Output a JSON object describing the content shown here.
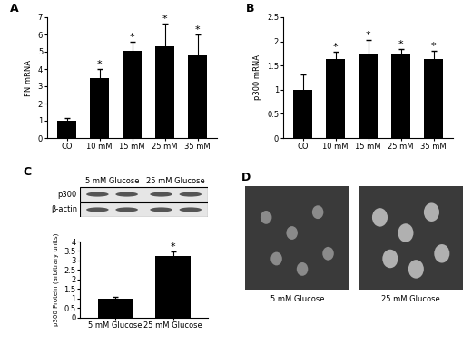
{
  "chart_data": [
    {
      "type": "bar",
      "title": "A",
      "y_label": "FN mRNA",
      "categories": [
        "CO",
        "10 mM",
        "15 mM",
        "25 mM",
        "35 mM"
      ],
      "values": [
        1.0,
        3.5,
        5.05,
        5.3,
        4.8
      ],
      "errors": [
        0.15,
        0.5,
        0.55,
        1.35,
        1.2
      ],
      "annotations": [
        null,
        "*",
        "*",
        "*",
        "*"
      ],
      "color": "#000000",
      "ylim": [
        0,
        7
      ],
      "yticks": [
        0,
        1,
        2,
        3,
        4,
        5,
        6,
        7
      ]
    },
    {
      "type": "bar",
      "title": "B",
      "y_label": "p300 mRNA",
      "categories": [
        "CO",
        "10 mM",
        "15 mM",
        "25 mM",
        "35 mM"
      ],
      "values": [
        1.0,
        1.63,
        1.75,
        1.73,
        1.63
      ],
      "errors": [
        0.32,
        0.15,
        0.28,
        0.12,
        0.18
      ],
      "annotations": [
        null,
        "*",
        "*",
        "*",
        "*"
      ],
      "color": "#000000",
      "ylim": [
        0,
        2.5
      ],
      "yticks": [
        0,
        0.5,
        1,
        1.5,
        2,
        2.5
      ]
    },
    {
      "type": "blot",
      "title": "C",
      "columns": [
        "5 mM Glucose",
        "25 mM Glucose"
      ],
      "rows": [
        "p300",
        "β-actin"
      ]
    },
    {
      "type": "bar",
      "y_label": "p300 Protein (arbitrary units)",
      "categories": [
        "5 mM Glucose",
        "25 mM Glucose"
      ],
      "values": [
        1.0,
        3.25
      ],
      "errors": [
        0.1,
        0.2
      ],
      "annotations": [
        null,
        "*"
      ],
      "color": "#000000",
      "ylim": [
        0,
        4
      ],
      "yticks": [
        0,
        0.5,
        1,
        1.5,
        2,
        2.5,
        3,
        3.5,
        4
      ]
    },
    {
      "type": "image",
      "title": "D",
      "labels": [
        "5 mM Glucose",
        "25 mM Glucose"
      ]
    }
  ]
}
